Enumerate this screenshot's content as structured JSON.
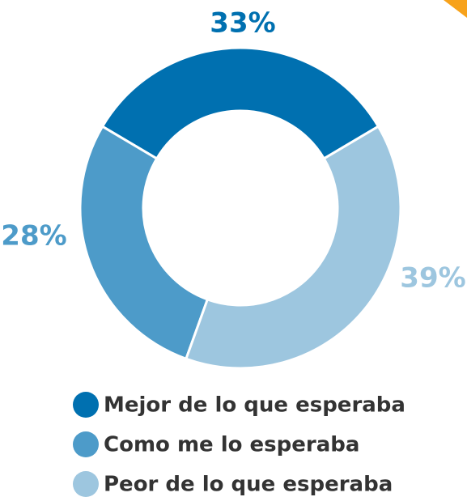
{
  "chart_data": {
    "type": "donut",
    "categories": [
      "Mejor de lo que esperaba",
      "Como me lo esperaba",
      "Peor de lo que esperaba"
    ],
    "values": [
      33,
      28,
      39
    ],
    "value_labels": [
      "33%",
      "28%",
      "39%"
    ],
    "colors": [
      "#0070b0",
      "#4d9bc9",
      "#9dc6df"
    ],
    "legend": "bottom"
  }
}
